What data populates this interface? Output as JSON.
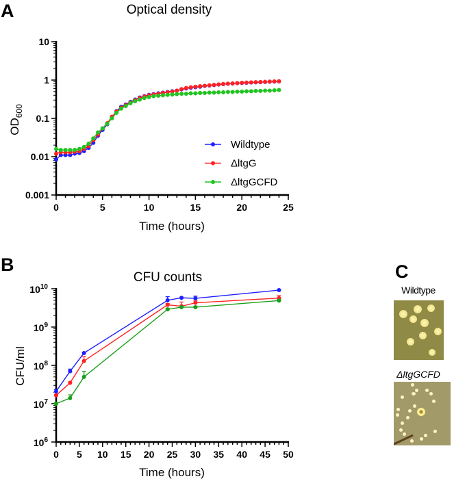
{
  "panel_labels": {
    "a": "A",
    "b": "B",
    "c": "C"
  },
  "colors": {
    "wildtype": "#1f1fff",
    "ltgG": "#ff2222",
    "ltgGCFD": "#22c422",
    "ltgGCFD_b": "#1a9e1a"
  },
  "chart_data": [
    {
      "type": "line",
      "title": "Optical density",
      "xlabel": "Time (hours)",
      "ylabel": "OD",
      "ylabel_sub": "600",
      "xlim": [
        0,
        25
      ],
      "ylim": [
        0.001,
        10
      ],
      "yscale": "log",
      "xticks": [
        0,
        5,
        10,
        15,
        20,
        25
      ],
      "xtick_labels": [
        "0",
        "5",
        "10",
        "15",
        "20",
        "25"
      ],
      "yticks": [
        0.001,
        0.01,
        0.1,
        1,
        10
      ],
      "ytick_labels": [
        "0.001",
        "0.01",
        "0.1",
        "1",
        "10"
      ],
      "legend_placement": "bottom-right",
      "x": [
        0,
        0.5,
        1,
        1.5,
        2,
        2.5,
        3,
        3.5,
        4,
        4.5,
        5,
        5.5,
        6,
        6.5,
        7,
        7.5,
        8,
        8.5,
        9,
        9.5,
        10,
        10.5,
        11,
        11.5,
        12,
        12.5,
        13,
        13.5,
        14,
        14.5,
        15,
        15.5,
        16,
        16.5,
        17,
        17.5,
        18,
        18.5,
        19,
        19.5,
        20,
        20.5,
        21,
        21.5,
        22,
        22.5,
        23,
        23.5,
        24
      ],
      "series": [
        {
          "name": "Wildtype",
          "color_key": "wildtype",
          "values": [
            0.0085,
            0.011,
            0.011,
            0.011,
            0.012,
            0.0125,
            0.014,
            0.017,
            0.023,
            0.035,
            0.05,
            0.07,
            0.105,
            0.155,
            0.2,
            0.23,
            0.27,
            0.31,
            0.35,
            0.38,
            0.41,
            0.43,
            0.45,
            0.47,
            0.49,
            0.51,
            0.53,
            0.57,
            0.6,
            0.63,
            0.65,
            0.67,
            0.7,
            0.72,
            0.74,
            0.76,
            0.78,
            0.8,
            0.81,
            0.83,
            0.84,
            0.85,
            0.86,
            0.87,
            0.88,
            0.89,
            0.9,
            0.91,
            0.92
          ]
        },
        {
          "name": "ΔltgG",
          "color_key": "ltgG",
          "values": [
            0.012,
            0.013,
            0.013,
            0.013,
            0.0135,
            0.014,
            0.016,
            0.019,
            0.027,
            0.038,
            0.055,
            0.075,
            0.11,
            0.15,
            0.19,
            0.22,
            0.26,
            0.3,
            0.34,
            0.37,
            0.4,
            0.42,
            0.44,
            0.46,
            0.48,
            0.5,
            0.53,
            0.58,
            0.62,
            0.65,
            0.67,
            0.69,
            0.71,
            0.73,
            0.75,
            0.77,
            0.79,
            0.8,
            0.82,
            0.83,
            0.85,
            0.86,
            0.87,
            0.88,
            0.89,
            0.9,
            0.91,
            0.92,
            0.93
          ]
        },
        {
          "name": "ΔltgGCFD",
          "color_key": "ltgGCFD",
          "values": [
            0.016,
            0.015,
            0.015,
            0.015,
            0.015,
            0.016,
            0.018,
            0.022,
            0.03,
            0.043,
            0.055,
            0.072,
            0.1,
            0.14,
            0.18,
            0.21,
            0.25,
            0.28,
            0.31,
            0.34,
            0.36,
            0.38,
            0.39,
            0.4,
            0.41,
            0.42,
            0.43,
            0.44,
            0.44,
            0.45,
            0.45,
            0.46,
            0.46,
            0.47,
            0.47,
            0.48,
            0.48,
            0.49,
            0.49,
            0.5,
            0.5,
            0.51,
            0.51,
            0.52,
            0.52,
            0.53,
            0.53,
            0.54,
            0.55
          ]
        }
      ]
    },
    {
      "type": "line",
      "title": "CFU counts",
      "xlabel": "Time (hours)",
      "ylabel": "CFU/ml",
      "xlim": [
        0,
        50
      ],
      "ylim": [
        1000000,
        10000000000
      ],
      "yscale": "log",
      "xticks": [
        0,
        5,
        10,
        15,
        20,
        25,
        30,
        35,
        40,
        45,
        50
      ],
      "xtick_labels": [
        "0",
        "5",
        "10",
        "15",
        "20",
        "25",
        "30",
        "35",
        "40",
        "45",
        "50"
      ],
      "yticks": [
        6,
        7,
        8,
        9,
        10
      ],
      "ytick_base": "10",
      "ytick_exponents": [
        "6",
        "7",
        "8",
        "9",
        "10"
      ],
      "x": [
        0,
        3,
        6,
        24,
        27,
        30,
        48
      ],
      "series": [
        {
          "name": "Wildtype",
          "color_key": "wildtype",
          "values": [
            21000000,
            70000000,
            210000000,
            5000000000,
            5800000000,
            5600000000,
            9200000000
          ],
          "err_upper": [
            2500000,
            10000000,
            10000000,
            1200000000,
            200000000,
            800000000,
            300000000
          ]
        },
        {
          "name": "ΔltgG",
          "color_key": "ltgG",
          "values": [
            16500000,
            35000000,
            130000000,
            3800000000,
            3500000000,
            4300000000,
            5700000000
          ],
          "err_upper": [
            1000000,
            2000000,
            40000000,
            300000000,
            1000000000,
            500000000,
            900000000
          ]
        },
        {
          "name": "ΔltgGCFD",
          "color_key": "ltgGCFD_b",
          "values": [
            10000000,
            14000000,
            50000000,
            2900000000,
            3300000000,
            3300000000,
            4900000000
          ],
          "err_upper": [
            500000,
            3000000,
            20000000,
            200000000,
            200000000,
            200000000,
            300000000
          ]
        }
      ]
    }
  ],
  "panel_c": {
    "label_top": "Wildtype",
    "label_bottom": "ΔltgGCFD"
  }
}
